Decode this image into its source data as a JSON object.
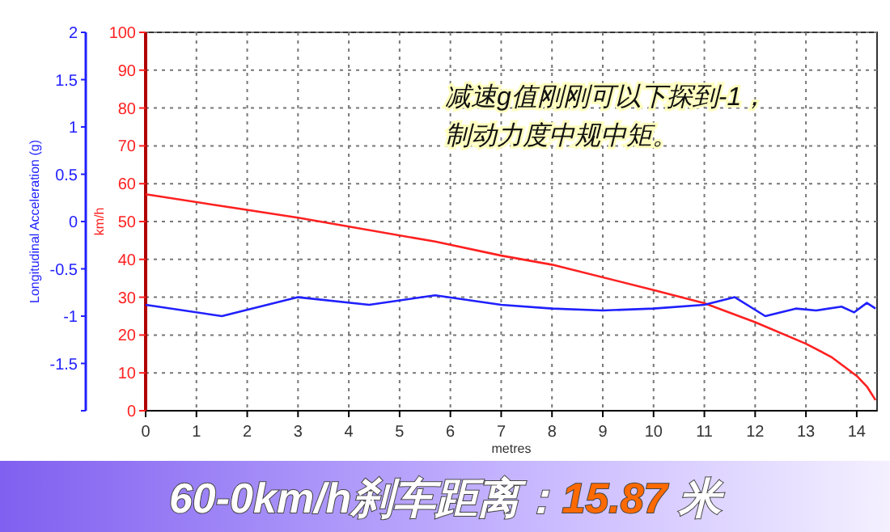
{
  "chart_data": {
    "type": "line",
    "title": "60-0km/h刹车距离：15.87 米",
    "xlabel": "metres",
    "ylabel": "km/h",
    "y2label": "Longitudinal Acceleration (g)",
    "annotations": [
      "减速g值刚刚可以下探到-1，",
      "制动力度中规中矩。"
    ],
    "xlim": [
      0,
      14.4
    ],
    "xticks": [
      0,
      1,
      2,
      3,
      4,
      5,
      6,
      7,
      8,
      9,
      10,
      11,
      12,
      13,
      14
    ],
    "ylim": [
      0,
      100
    ],
    "yticks": [
      0,
      10,
      20,
      30,
      40,
      50,
      60,
      70,
      80,
      90,
      100
    ],
    "y2lim": [
      -2,
      2
    ],
    "y2ticks": [
      {
        "value": -2,
        "label": null
      },
      -1.5,
      -1,
      -0.5,
      0,
      0.5,
      1,
      1.5,
      2
    ],
    "grid": true,
    "series": [
      {
        "color": "#ff2020",
        "x": [
          0,
          3,
          5.7,
          7,
          8,
          10,
          11,
          12,
          13,
          13.5,
          14,
          14.2,
          14.37
        ],
        "values": [
          57.2,
          51,
          44.7,
          41,
          38.6,
          31.9,
          28.4,
          23.4,
          17.7,
          14.2,
          9.2,
          6.4,
          2.8
        ]
      },
      {
        "color": "#2020ff",
        "axis": "y2",
        "x": [
          0,
          1.5,
          3,
          4.4,
          5.7,
          7,
          8,
          9,
          10,
          11,
          11.6,
          12.2,
          12.8,
          13.2,
          13.7,
          13.95,
          14.2,
          14.37
        ],
        "values": [
          -0.88,
          -1,
          -0.8,
          -0.88,
          -0.78,
          -0.88,
          -0.92,
          -0.94,
          -0.92,
          -0.88,
          -0.8,
          -1,
          -0.92,
          -0.94,
          -0.9,
          -0.96,
          -0.86,
          -0.92
        ]
      }
    ]
  }
}
